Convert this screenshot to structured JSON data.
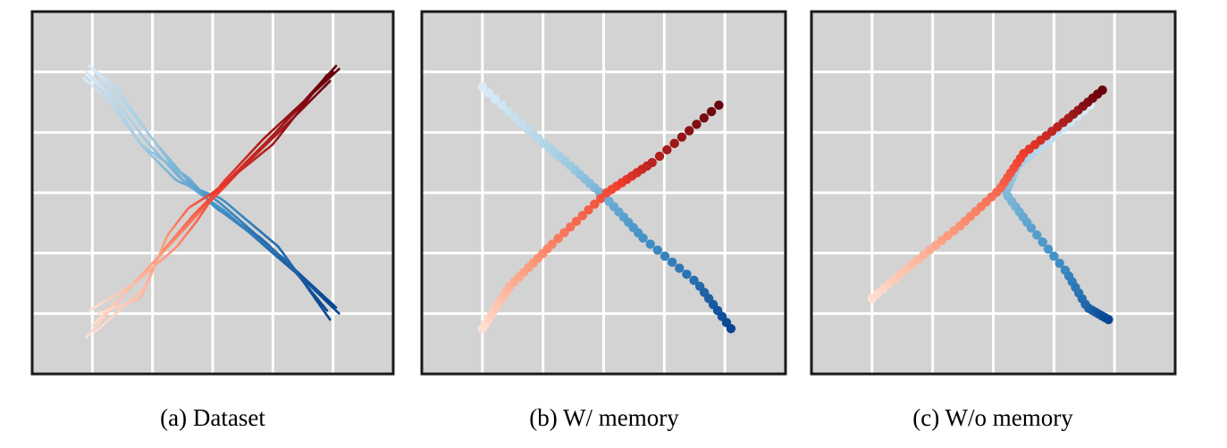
{
  "colors": {
    "background": "#d3d3d3",
    "grid": "#ffffff",
    "frame": "#1a1a1a",
    "blue_colormap": "Blues",
    "red_colormap": "Reds"
  },
  "chart_data": [
    {
      "type": "line",
      "caption": "(a) Dataset",
      "xlim": [
        -3,
        3
      ],
      "ylim": [
        -3,
        3
      ],
      "grid": true,
      "ticks_visible": false,
      "xgrid": [
        -2,
        -1,
        0,
        1,
        2
      ],
      "ygrid": [
        -2,
        -1,
        0,
        1,
        2
      ],
      "series": [
        {
          "color_map": "Blues",
          "trajectories": [
            [
              [
                -2.1,
                2.0
              ],
              [
                -1.7,
                1.65
              ],
              [
                -1.1,
                0.85
              ],
              [
                -0.55,
                0.25
              ],
              [
                0.1,
                -0.15
              ],
              [
                0.9,
                -0.85
              ],
              [
                2.1,
                -2.0
              ]
            ],
            [
              [
                -2.05,
                2.1
              ],
              [
                -1.6,
                1.75
              ],
              [
                -1.05,
                0.95
              ],
              [
                -0.5,
                0.3
              ],
              [
                0.05,
                -0.25
              ],
              [
                0.8,
                -0.75
              ],
              [
                2.05,
                -1.9
              ]
            ],
            [
              [
                -2.15,
                1.9
              ],
              [
                -1.75,
                1.55
              ],
              [
                -1.15,
                0.75
              ],
              [
                -0.6,
                0.2
              ],
              [
                0.15,
                -0.1
              ],
              [
                1.1,
                -0.9
              ],
              [
                1.95,
                -2.1
              ]
            ],
            [
              [
                -2.0,
                2.05
              ],
              [
                -1.65,
                1.7
              ],
              [
                -1.0,
                0.9
              ],
              [
                -0.45,
                0.15
              ],
              [
                0.2,
                -0.3
              ],
              [
                1.0,
                -1.0
              ],
              [
                2.0,
                -1.85
              ]
            ],
            [
              [
                -2.1,
                1.95
              ],
              [
                -1.7,
                1.6
              ],
              [
                -1.2,
                0.8
              ],
              [
                -0.4,
                0.25
              ],
              [
                0.0,
                -0.2
              ],
              [
                1.2,
                -1.1
              ],
              [
                1.9,
                -1.95
              ]
            ]
          ]
        },
        {
          "color_map": "Reds",
          "trajectories": [
            [
              [
                -2.1,
                -2.4
              ],
              [
                -1.5,
                -1.7
              ],
              [
                -0.8,
                -0.95
              ],
              [
                -0.3,
                -0.35
              ],
              [
                0.1,
                0.05
              ],
              [
                0.9,
                0.85
              ],
              [
                2.0,
                2.0
              ]
            ],
            [
              [
                -2.0,
                -2.2
              ],
              [
                -1.4,
                -1.6
              ],
              [
                -0.7,
                -0.85
              ],
              [
                -0.2,
                -0.3
              ],
              [
                0.2,
                0.1
              ],
              [
                1.0,
                0.95
              ],
              [
                2.05,
                2.1
              ]
            ],
            [
              [
                -1.9,
                -2.0
              ],
              [
                -1.2,
                -1.75
              ],
              [
                -0.9,
                -1.05
              ],
              [
                -0.35,
                -0.4
              ],
              [
                0.05,
                0.0
              ],
              [
                1.1,
                1.0
              ],
              [
                1.95,
                1.85
              ]
            ],
            [
              [
                -2.05,
                -1.95
              ],
              [
                -1.3,
                -1.5
              ],
              [
                -0.6,
                -0.9
              ],
              [
                -0.25,
                -0.45
              ],
              [
                0.15,
                0.15
              ],
              [
                0.85,
                0.9
              ],
              [
                2.1,
                2.05
              ]
            ],
            [
              [
                -1.95,
                -2.3
              ],
              [
                -1.1,
                -1.55
              ],
              [
                -0.75,
                -0.7
              ],
              [
                -0.4,
                -0.25
              ],
              [
                0.0,
                0.0
              ],
              [
                1.0,
                0.8
              ],
              [
                1.9,
                1.95
              ]
            ]
          ]
        }
      ]
    },
    {
      "type": "scatter",
      "caption": "(b) W/ memory",
      "xlim": [
        -3,
        3
      ],
      "ylim": [
        -3,
        3
      ],
      "grid": true,
      "ticks_visible": false,
      "xgrid": [
        -2,
        -1,
        0,
        1,
        2
      ],
      "ygrid": [
        -2,
        -1,
        0,
        1,
        2
      ],
      "series": [
        {
          "color_map": "Blues",
          "points": [
            [
              -2.0,
              1.75
            ],
            [
              -1.2,
              1.0
            ],
            [
              -0.55,
              0.45
            ],
            [
              0.05,
              -0.1
            ],
            [
              0.65,
              -0.75
            ],
            [
              1.55,
              -1.5
            ],
            [
              2.1,
              -2.25
            ]
          ]
        },
        {
          "color_map": "Reds",
          "points": [
            [
              -2.0,
              -2.25
            ],
            [
              -1.55,
              -1.55
            ],
            [
              -0.85,
              -0.85
            ],
            [
              0.05,
              0.0
            ],
            [
              0.8,
              0.5
            ],
            [
              1.9,
              1.45
            ]
          ]
        }
      ]
    },
    {
      "type": "scatter",
      "caption": "(c) W/o memory",
      "xlim": [
        -3,
        3
      ],
      "ylim": [
        -3,
        3
      ],
      "grid": true,
      "ticks_visible": false,
      "xgrid": [
        -2,
        -1,
        0,
        1,
        2
      ],
      "ygrid": [
        -2,
        -1,
        0,
        1,
        2
      ],
      "series": [
        {
          "color_map": "Blues",
          "points": [
            [
              1.6,
              1.45
            ],
            [
              0.9,
              0.85
            ],
            [
              0.4,
              0.45
            ],
            [
              0.2,
              0.0
            ],
            [
              0.6,
              -0.55
            ],
            [
              1.2,
              -1.3
            ],
            [
              1.55,
              -1.9
            ],
            [
              1.9,
              -2.1
            ]
          ]
        },
        {
          "color_map": "Reds",
          "points": [
            [
              -2.0,
              -1.75
            ],
            [
              -1.3,
              -1.15
            ],
            [
              -0.55,
              -0.55
            ],
            [
              0.1,
              0.05
            ],
            [
              0.5,
              0.65
            ],
            [
              1.2,
              1.2
            ],
            [
              1.8,
              1.7
            ]
          ]
        }
      ]
    }
  ]
}
